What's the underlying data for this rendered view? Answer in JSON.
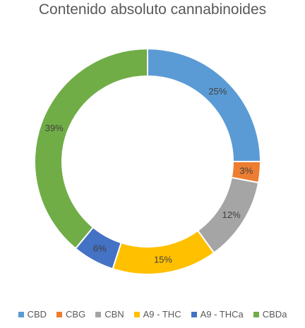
{
  "chart_data": {
    "type": "pie",
    "variant": "donut",
    "title": "Contenido absoluto cannabinoides",
    "legend_position": "bottom",
    "slices": [
      {
        "label": "CBD",
        "value": 25,
        "display": "25%",
        "color": "#5B9BD5"
      },
      {
        "label": "CBG",
        "value": 3,
        "display": "3%",
        "color": "#ED7D31"
      },
      {
        "label": "CBN",
        "value": 12,
        "display": "12%",
        "color": "#A5A5A5"
      },
      {
        "label": "A9 - THC",
        "value": 15,
        "display": "15%",
        "color": "#FFC000"
      },
      {
        "label": "A9 - THCa",
        "value": 6,
        "display": "6%",
        "color": "#4472C4"
      },
      {
        "label": "CBDa",
        "value": 39,
        "display": "39%",
        "color": "#70AD47"
      }
    ]
  }
}
